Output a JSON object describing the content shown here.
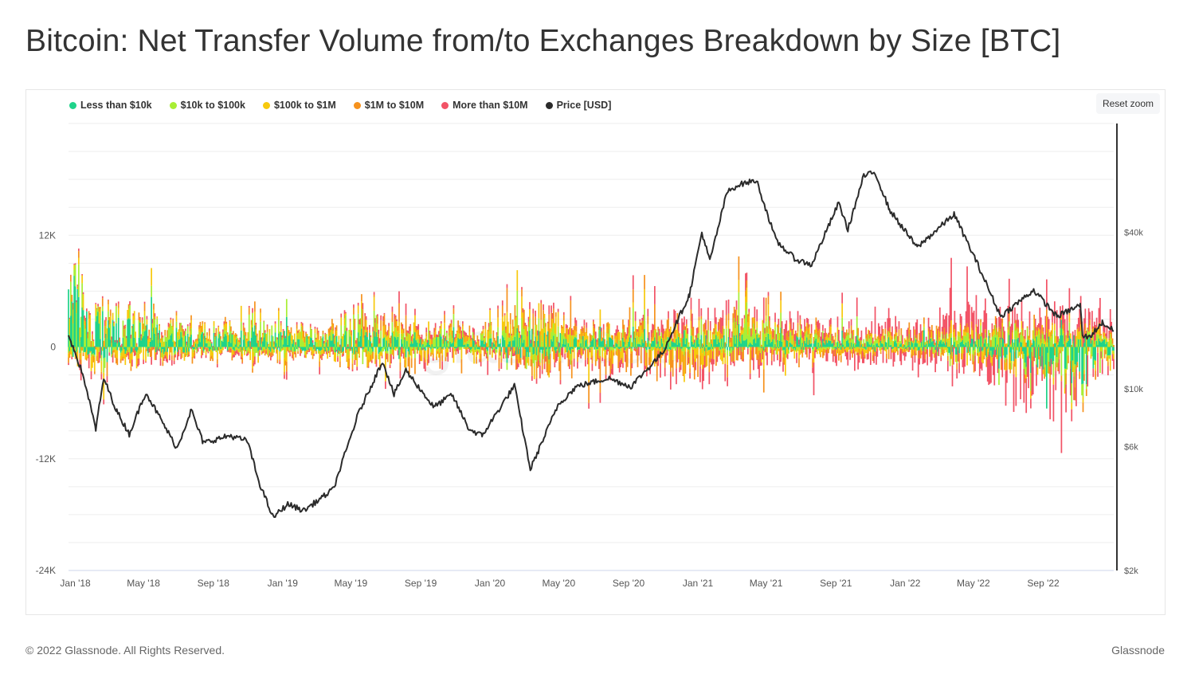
{
  "title": "Bitcoin: Net Transfer Volume from/to Exchanges Breakdown by Size [BTC]",
  "reset_zoom_label": "Reset zoom",
  "watermark": "glassnode",
  "footer": {
    "copyright": "© 2022 Glassnode. All Rights Reserved.",
    "brand": "Glassnode"
  },
  "chart_data": {
    "type": "bar",
    "stacked": true,
    "x_tick_labels": [
      "Jan '18",
      "May '18",
      "Sep '18",
      "Jan '19",
      "May '19",
      "Sep '19",
      "Jan '20",
      "May '20",
      "Sep '20",
      "Jan '21",
      "May '21",
      "Sep '21",
      "Jan '22",
      "May '22",
      "Sep '22"
    ],
    "x_range": [
      "2017-12-20",
      "2023-01-03"
    ],
    "y_left": {
      "ticks": [
        12000,
        0,
        -12000,
        -24000
      ],
      "tick_labels": [
        "12K",
        "0",
        "-12K",
        "-24K"
      ],
      "range": [
        -24000,
        24000
      ]
    },
    "y_right": {
      "scale": "log",
      "ticks": [
        40000,
        10000,
        6000,
        2000
      ],
      "tick_labels": [
        "$40k",
        "$10k",
        "$6k",
        "$2k"
      ],
      "range": [
        2000,
        105000
      ]
    },
    "legend_position": "top-left",
    "grid": true,
    "series": [
      {
        "name": "Less than $10k",
        "color": "#1fd38a",
        "envelope": [
          [
            "2017-12-20",
            9000,
            -1500
          ],
          [
            "2018-01-20",
            6000,
            -1200
          ],
          [
            "2018-03-01",
            3500,
            -1000
          ],
          [
            "2018-06-01",
            2500,
            -800
          ],
          [
            "2018-09-01",
            1500,
            -500
          ],
          [
            "2018-12-01",
            1800,
            -600
          ],
          [
            "2019-03-01",
            1200,
            -500
          ],
          [
            "2019-06-01",
            2200,
            -900
          ],
          [
            "2019-09-01",
            1200,
            -400
          ],
          [
            "2020-01-01",
            1000,
            -300
          ],
          [
            "2020-03-12",
            2200,
            -1500
          ],
          [
            "2020-06-01",
            1200,
            -400
          ],
          [
            "2020-10-01",
            1000,
            -300
          ],
          [
            "2021-01-01",
            1300,
            -500
          ],
          [
            "2021-05-01",
            1500,
            -400
          ],
          [
            "2021-09-01",
            900,
            -300
          ],
          [
            "2022-01-01",
            800,
            -300
          ],
          [
            "2022-06-01",
            1200,
            -1200
          ],
          [
            "2022-11-09",
            1500,
            -5000
          ],
          [
            "2023-01-03",
            700,
            -500
          ]
        ]
      },
      {
        "name": "$10k to $100k",
        "color": "#a8ee34",
        "envelope": [
          [
            "2017-12-20",
            4000,
            -900
          ],
          [
            "2018-01-20",
            3500,
            -800
          ],
          [
            "2018-03-01",
            2500,
            -700
          ],
          [
            "2018-06-01",
            1500,
            -600
          ],
          [
            "2018-09-01",
            900,
            -400
          ],
          [
            "2018-12-01",
            2000,
            -800
          ],
          [
            "2019-03-01",
            900,
            -400
          ],
          [
            "2019-06-01",
            2500,
            -1000
          ],
          [
            "2019-09-01",
            1200,
            -500
          ],
          [
            "2020-01-01",
            900,
            -300
          ],
          [
            "2020-03-12",
            2500,
            -1500
          ],
          [
            "2020-06-01",
            1200,
            -500
          ],
          [
            "2020-10-01",
            1000,
            -400
          ],
          [
            "2021-01-01",
            1800,
            -600
          ],
          [
            "2021-05-01",
            2000,
            -700
          ],
          [
            "2021-09-01",
            1000,
            -300
          ],
          [
            "2022-01-01",
            900,
            -300
          ],
          [
            "2022-06-01",
            1400,
            -1400
          ],
          [
            "2022-11-09",
            1500,
            -3000
          ],
          [
            "2023-01-03",
            800,
            -500
          ]
        ]
      },
      {
        "name": "$100k to $1M",
        "color": "#f7c90d",
        "envelope": [
          [
            "2017-12-20",
            2000,
            -1500
          ],
          [
            "2018-01-20",
            2000,
            -2000
          ],
          [
            "2018-03-01",
            1500,
            -1500
          ],
          [
            "2018-06-01",
            1200,
            -1500
          ],
          [
            "2018-09-01",
            800,
            -800
          ],
          [
            "2018-12-01",
            1200,
            -1200
          ],
          [
            "2019-03-01",
            800,
            -800
          ],
          [
            "2019-06-01",
            1600,
            -1600
          ],
          [
            "2019-09-01",
            900,
            -1200
          ],
          [
            "2020-01-01",
            900,
            -700
          ],
          [
            "2020-03-12",
            3000,
            -1500
          ],
          [
            "2020-06-01",
            1200,
            -1600
          ],
          [
            "2020-10-01",
            1200,
            -1800
          ],
          [
            "2021-01-01",
            1500,
            -2000
          ],
          [
            "2021-05-01",
            1400,
            -1200
          ],
          [
            "2021-09-01",
            900,
            -700
          ],
          [
            "2022-01-01",
            800,
            -700
          ],
          [
            "2022-06-01",
            1000,
            -1300
          ],
          [
            "2022-11-09",
            1000,
            -1500
          ],
          [
            "2023-01-03",
            700,
            -700
          ]
        ]
      },
      {
        "name": "$1M to $10M",
        "color": "#f6921d",
        "envelope": [
          [
            "2017-12-20",
            800,
            -800
          ],
          [
            "2018-01-20",
            900,
            -900
          ],
          [
            "2018-03-01",
            900,
            -800
          ],
          [
            "2018-06-01",
            900,
            -1000
          ],
          [
            "2018-09-01",
            700,
            -600
          ],
          [
            "2018-12-01",
            800,
            -700
          ],
          [
            "2019-03-01",
            700,
            -600
          ],
          [
            "2019-06-01",
            1600,
            -1200
          ],
          [
            "2019-09-01",
            900,
            -1000
          ],
          [
            "2020-01-01",
            900,
            -900
          ],
          [
            "2020-03-12",
            2500,
            -2500
          ],
          [
            "2020-06-01",
            1200,
            -2200
          ],
          [
            "2020-10-01",
            1500,
            -2500
          ],
          [
            "2021-01-01",
            1500,
            -2500
          ],
          [
            "2021-05-01",
            1200,
            -1500
          ],
          [
            "2021-09-01",
            900,
            -900
          ],
          [
            "2022-01-01",
            800,
            -800
          ],
          [
            "2022-06-01",
            900,
            -1300
          ],
          [
            "2022-11-09",
            900,
            -1500
          ],
          [
            "2023-01-03",
            600,
            -800
          ]
        ]
      },
      {
        "name": "More than $10M",
        "color": "#f25366",
        "envelope": [
          [
            "2017-12-20",
            200,
            -300
          ],
          [
            "2018-01-20",
            400,
            -2500
          ],
          [
            "2018-03-01",
            400,
            -800
          ],
          [
            "2018-06-01",
            500,
            -800
          ],
          [
            "2018-09-01",
            300,
            -500
          ],
          [
            "2018-12-01",
            300,
            -400
          ],
          [
            "2019-03-01",
            300,
            -400
          ],
          [
            "2019-06-01",
            600,
            -700
          ],
          [
            "2019-09-01",
            600,
            -1500
          ],
          [
            "2020-01-01",
            500,
            -800
          ],
          [
            "2020-03-12",
            800,
            -1500
          ],
          [
            "2020-06-01",
            1000,
            -1000
          ],
          [
            "2020-10-01",
            1200,
            -1500
          ],
          [
            "2021-01-01",
            2000,
            -2500
          ],
          [
            "2021-05-01",
            1500,
            -1500
          ],
          [
            "2021-09-01",
            1200,
            -1800
          ],
          [
            "2022-01-01",
            1500,
            -2000
          ],
          [
            "2022-05-09",
            4000,
            -2500
          ],
          [
            "2022-06-13",
            2500,
            -4500
          ],
          [
            "2022-11-09",
            3000,
            -4500
          ],
          [
            "2023-01-03",
            1500,
            -1500
          ]
        ]
      },
      {
        "name": "Price [USD]",
        "color": "#2b2b2b",
        "axis": "right",
        "points": [
          [
            "2017-12-20",
            16000
          ],
          [
            "2017-12-31",
            14000
          ],
          [
            "2018-01-16",
            11000
          ],
          [
            "2018-02-06",
            7000
          ],
          [
            "2018-02-20",
            11000
          ],
          [
            "2018-03-15",
            8200
          ],
          [
            "2018-04-06",
            6700
          ],
          [
            "2018-05-05",
            9700
          ],
          [
            "2018-06-29",
            5900
          ],
          [
            "2018-07-24",
            8300
          ],
          [
            "2018-08-14",
            6200
          ],
          [
            "2018-09-30",
            6600
          ],
          [
            "2018-10-31",
            6300
          ],
          [
            "2018-11-20",
            4400
          ],
          [
            "2018-12-15",
            3200
          ],
          [
            "2019-01-10",
            3600
          ],
          [
            "2019-02-07",
            3400
          ],
          [
            "2019-03-31",
            4100
          ],
          [
            "2019-05-14",
            8000
          ],
          [
            "2019-06-26",
            12800
          ],
          [
            "2019-07-16",
            9500
          ],
          [
            "2019-08-06",
            11800
          ],
          [
            "2019-09-24",
            8500
          ],
          [
            "2019-10-26",
            9500
          ],
          [
            "2019-11-25",
            7000
          ],
          [
            "2019-12-18",
            6600
          ],
          [
            "2020-02-13",
            10300
          ],
          [
            "2020-03-12",
            4900
          ],
          [
            "2020-04-30",
            8700
          ],
          [
            "2020-06-01",
            10200
          ],
          [
            "2020-07-27",
            11000
          ],
          [
            "2020-09-05",
            10200
          ],
          [
            "2020-10-31",
            13800
          ],
          [
            "2020-12-17",
            23000
          ],
          [
            "2021-01-08",
            40000
          ],
          [
            "2021-01-22",
            31000
          ],
          [
            "2021-02-21",
            57000
          ],
          [
            "2021-03-13",
            61000
          ],
          [
            "2021-04-14",
            63500
          ],
          [
            "2021-05-19",
            37000
          ],
          [
            "2021-06-22",
            31500
          ],
          [
            "2021-07-20",
            30000
          ],
          [
            "2021-09-06",
            52000
          ],
          [
            "2021-09-22",
            41000
          ],
          [
            "2021-10-20",
            66000
          ],
          [
            "2021-11-09",
            68000
          ],
          [
            "2021-12-04",
            49000
          ],
          [
            "2022-01-22",
            35000
          ],
          [
            "2022-03-28",
            47000
          ],
          [
            "2022-05-09",
            30000
          ],
          [
            "2022-06-18",
            19000
          ],
          [
            "2022-08-15",
            24000
          ],
          [
            "2022-09-25",
            19000
          ],
          [
            "2022-11-05",
            21000
          ],
          [
            "2022-11-09",
            16000
          ],
          [
            "2022-11-21",
            15800
          ],
          [
            "2022-12-14",
            18000
          ],
          [
            "2023-01-03",
            16700
          ]
        ]
      }
    ]
  }
}
